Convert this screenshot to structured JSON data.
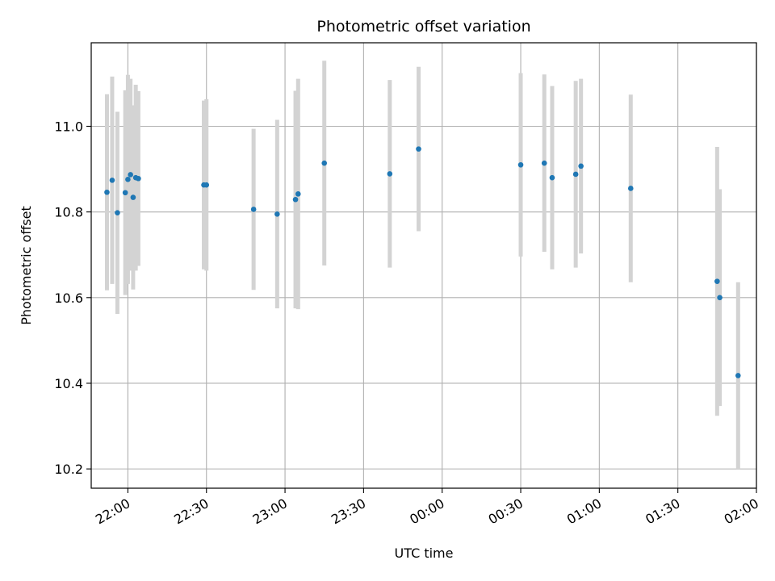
{
  "chart_data": {
    "type": "scatter",
    "title": "Photometric offset variation",
    "xlabel": "UTC time",
    "ylabel": "Photometric offset",
    "x_axis": {
      "kind": "time",
      "range": [
        "21:46",
        "02:00"
      ],
      "ticks": [
        {
          "t": "22:00",
          "label": "22:00"
        },
        {
          "t": "22:30",
          "label": "22:30"
        },
        {
          "t": "23:00",
          "label": "23:00"
        },
        {
          "t": "23:30",
          "label": "23:30"
        },
        {
          "t": "00:00",
          "label": "00:00"
        },
        {
          "t": "00:30",
          "label": "00:30"
        },
        {
          "t": "01:00",
          "label": "01:00"
        },
        {
          "t": "01:30",
          "label": "01:30"
        },
        {
          "t": "02:00",
          "label": "02:00"
        }
      ]
    },
    "y_axis": {
      "range": [
        10.155,
        11.195
      ],
      "ticks": [
        {
          "v": 10.2,
          "label": "10.2"
        },
        {
          "v": 10.4,
          "label": "10.4"
        },
        {
          "v": 10.6,
          "label": "10.6"
        },
        {
          "v": 10.8,
          "label": "10.8"
        },
        {
          "v": 11.0,
          "label": "11.0"
        }
      ]
    },
    "grid": true,
    "colors": {
      "point": "#1f77b4",
      "errorbar": "#d3d3d3",
      "grid": "#b0b0b0"
    },
    "points": [
      {
        "t": "21:52",
        "y": 10.846,
        "lo": 10.617,
        "hi": 11.075
      },
      {
        "t": "21:54",
        "y": 10.874,
        "lo": 10.632,
        "hi": 11.116
      },
      {
        "t": "21:56",
        "y": 10.798,
        "lo": 10.562,
        "hi": 11.034
      },
      {
        "t": "21:59",
        "y": 10.845,
        "lo": 10.606,
        "hi": 11.084
      },
      {
        "t": "22:00",
        "y": 10.876,
        "lo": 10.632,
        "hi": 11.12
      },
      {
        "t": "22:01",
        "y": 10.887,
        "lo": 10.663,
        "hi": 11.111
      },
      {
        "t": "22:02",
        "y": 10.834,
        "lo": 10.619,
        "hi": 11.049
      },
      {
        "t": "22:03",
        "y": 10.88,
        "lo": 10.663,
        "hi": 11.097
      },
      {
        "t": "22:04",
        "y": 10.878,
        "lo": 10.674,
        "hi": 11.082
      },
      {
        "t": "22:29",
        "y": 10.863,
        "lo": 10.666,
        "hi": 11.06
      },
      {
        "t": "22:30",
        "y": 10.863,
        "lo": 10.663,
        "hi": 11.063
      },
      {
        "t": "22:48",
        "y": 10.806,
        "lo": 10.618,
        "hi": 10.994
      },
      {
        "t": "22:57",
        "y": 10.795,
        "lo": 10.575,
        "hi": 11.015
      },
      {
        "t": "23:04",
        "y": 10.829,
        "lo": 10.575,
        "hi": 11.083
      },
      {
        "t": "23:05",
        "y": 10.842,
        "lo": 10.573,
        "hi": 11.111
      },
      {
        "t": "23:15",
        "y": 10.914,
        "lo": 10.675,
        "hi": 11.153
      },
      {
        "t": "23:40",
        "y": 10.889,
        "lo": 10.67,
        "hi": 11.108
      },
      {
        "t": "23:51",
        "y": 10.947,
        "lo": 10.755,
        "hi": 11.139
      },
      {
        "t": "00:30",
        "y": 10.91,
        "lo": 10.696,
        "hi": 11.124
      },
      {
        "t": "00:39",
        "y": 10.914,
        "lo": 10.707,
        "hi": 11.121
      },
      {
        "t": "00:42",
        "y": 10.88,
        "lo": 10.666,
        "hi": 11.094
      },
      {
        "t": "00:51",
        "y": 10.888,
        "lo": 10.67,
        "hi": 11.106
      },
      {
        "t": "00:53",
        "y": 10.907,
        "lo": 10.703,
        "hi": 11.111
      },
      {
        "t": "01:12",
        "y": 10.855,
        "lo": 10.636,
        "hi": 11.074
      },
      {
        "t": "01:45",
        "y": 10.638,
        "lo": 10.324,
        "hi": 10.952
      },
      {
        "t": "01:46",
        "y": 10.6,
        "lo": 10.347,
        "hi": 10.853
      },
      {
        "t": "01:53",
        "y": 10.418,
        "lo": 10.2,
        "hi": 10.636
      }
    ]
  }
}
